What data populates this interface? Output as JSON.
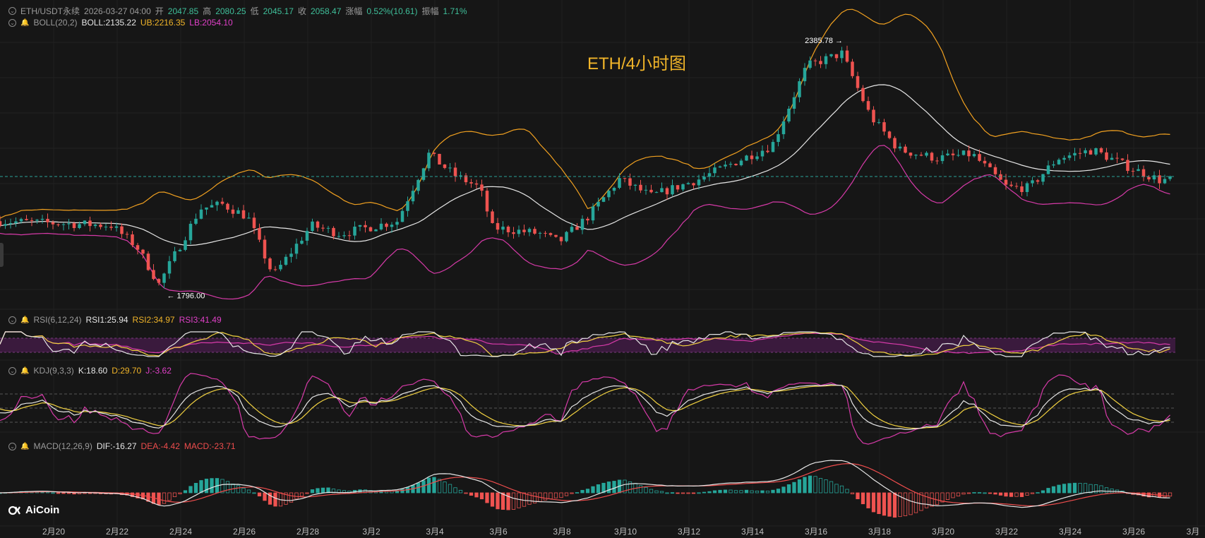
{
  "header": {
    "symbol": "ETH/USDT永续",
    "datetime": "2026-03-27 04:00",
    "open_label": "开",
    "open": "2047.85",
    "high_label": "高",
    "high": "2080.25",
    "low_label": "低",
    "low": "2045.17",
    "close_label": "收",
    "close": "2058.47",
    "change_label": "涨幅",
    "change": "0.52%(10.61)",
    "amp_label": "振幅",
    "amp": "1.71%"
  },
  "boll": {
    "name": "BOLL(20,2)",
    "mid": "BOLL:2135.22",
    "ub": "UB:2216.35",
    "lb": "LB:2054.10"
  },
  "rsi": {
    "name": "RSI(6,12,24)",
    "r1": "RSI1:25.94",
    "r2": "RSI2:34.97",
    "r3": "RSI3:41.49"
  },
  "kdj": {
    "name": "KDJ(9,3,3)",
    "k": "K:18.60",
    "d": "D:29.70",
    "j": "J:-3.62"
  },
  "macd": {
    "name": "MACD(12,26,9)",
    "dif": "DIF:-16.27",
    "dea": "DEA:-4.42",
    "m": "MACD:-23.71"
  },
  "title": "ETH/4小时图",
  "logo": "AiCoin",
  "colors": {
    "up": "#26a69a",
    "down": "#ef5350",
    "boll_mid": "#e6e6e6",
    "boll_ub": "#f0a020",
    "boll_lb": "#d63aa8",
    "accent": "#f0b429"
  },
  "chart_data": {
    "type": "candlestick",
    "interval": "4h",
    "x_ticks": [
      "2月20",
      "2月22",
      "2月24",
      "2月26",
      "2月28",
      "3月2",
      "3月4",
      "3月6",
      "3月8",
      "3月10",
      "3月12",
      "3月14",
      "3月16",
      "3月18",
      "3月20",
      "3月22",
      "3月24",
      "3月26",
      "3月"
    ],
    "annotations": [
      {
        "label": "← 1796.00"
      },
      {
        "label": "2385.78 →"
      }
    ],
    "price_anchors": [
      {
        "day": 0,
        "close": 1960
      },
      {
        "day": 3.5,
        "close": 1950
      },
      {
        "day": 4.3,
        "close": 1900
      },
      {
        "day": 5.0,
        "close": 1810
      },
      {
        "day": 6.3,
        "close": 1990
      },
      {
        "day": 7.0,
        "close": 2000
      },
      {
        "day": 7.8,
        "close": 1970
      },
      {
        "day": 8.6,
        "close": 1830
      },
      {
        "day": 9.8,
        "close": 1950
      },
      {
        "day": 10.7,
        "close": 1930
      },
      {
        "day": 12.5,
        "close": 1960
      },
      {
        "day": 13.5,
        "close": 2120
      },
      {
        "day": 14.3,
        "close": 2070
      },
      {
        "day": 15.1,
        "close": 2040
      },
      {
        "day": 15.5,
        "close": 1945
      },
      {
        "day": 17.0,
        "close": 1930
      },
      {
        "day": 17.6,
        "close": 1910
      },
      {
        "day": 18.5,
        "close": 1970
      },
      {
        "day": 19.5,
        "close": 2060
      },
      {
        "day": 20.5,
        "close": 2020
      },
      {
        "day": 22.0,
        "close": 2060
      },
      {
        "day": 23.4,
        "close": 2110
      },
      {
        "day": 24.3,
        "close": 2140
      },
      {
        "day": 25.4,
        "close": 2330
      },
      {
        "day": 26.5,
        "close": 2360
      },
      {
        "day": 27.4,
        "close": 2210
      },
      {
        "day": 28.3,
        "close": 2130
      },
      {
        "day": 29.5,
        "close": 2110
      },
      {
        "day": 30.6,
        "close": 2120
      },
      {
        "day": 31.7,
        "close": 2040
      },
      {
        "day": 32.4,
        "close": 2040
      },
      {
        "day": 33.3,
        "close": 2110
      },
      {
        "day": 34.4,
        "close": 2130
      },
      {
        "day": 35.5,
        "close": 2090
      },
      {
        "day": 36.5,
        "close": 2058
      }
    ],
    "ylim": [
      1750,
      2420
    ]
  }
}
